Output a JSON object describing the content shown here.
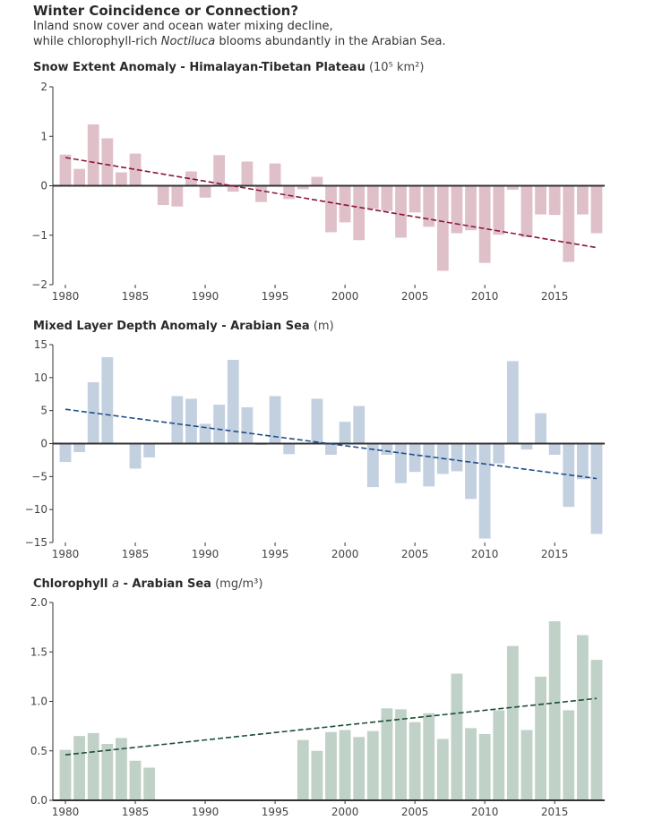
{
  "header": {
    "title": "Winter Coincidence or Connection?",
    "subtitle_line1": "Inland snow cover and ocean water mixing decline,",
    "subtitle_line2_pre": "while chlorophyll-rich ",
    "subtitle_line2_italic": "Noctiluca",
    "subtitle_line2_post": " blooms abundantly in the Arabian Sea."
  },
  "chart_data": [
    {
      "type": "bar",
      "title": "Snow Extent Anomaly - Himalayan-Tibetan Plateau",
      "unit_label": "(10⁵ km²)",
      "xlabel": "",
      "ylabel": "",
      "ylim": [
        -2,
        2
      ],
      "yticks": [
        2,
        1,
        0,
        -1,
        -2
      ],
      "ytick_labels": [
        "2",
        "1",
        "0",
        "−1",
        "−2"
      ],
      "xticks": [
        1980,
        1985,
        1990,
        1995,
        2000,
        2005,
        2010,
        2015
      ],
      "bar_color": "#dfc0c9",
      "trend_color": "#8a1538",
      "trend": {
        "x": [
          1980,
          2018
        ],
        "y": [
          0.57,
          -1.25
        ]
      },
      "x": [
        1980,
        1981,
        1982,
        1983,
        1984,
        1985,
        1986,
        1987,
        1988,
        1989,
        1990,
        1991,
        1992,
        1993,
        1994,
        1995,
        1996,
        1997,
        1998,
        1999,
        2000,
        2001,
        2002,
        2003,
        2004,
        2005,
        2006,
        2007,
        2008,
        2009,
        2010,
        2011,
        2012,
        2013,
        2014,
        2015,
        2016,
        2017,
        2018
      ],
      "values": [
        0.63,
        0.34,
        1.24,
        0.96,
        0.27,
        0.65,
        null,
        -0.39,
        -0.42,
        0.29,
        -0.24,
        0.62,
        -0.12,
        0.49,
        -0.33,
        0.45,
        -0.27,
        -0.07,
        0.18,
        -0.94,
        -0.74,
        -1.1,
        -0.47,
        -0.51,
        -1.05,
        -0.54,
        -0.83,
        -1.72,
        -0.96,
        -0.9,
        -1.56,
        -0.99,
        -0.08,
        -1.04,
        -0.58,
        -0.59,
        -1.54,
        -0.58,
        -0.96
      ]
    },
    {
      "type": "bar",
      "title": "Mixed Layer Depth Anomaly - Arabian Sea",
      "unit_label": "(m)",
      "xlabel": "",
      "ylabel": "",
      "ylim": [
        -15,
        15
      ],
      "yticks": [
        15,
        10,
        5,
        0,
        -5,
        -10,
        -15
      ],
      "ytick_labels": [
        "15",
        "10",
        "5",
        "0",
        "−5",
        "−10",
        "−15"
      ],
      "xticks": [
        1980,
        1985,
        1990,
        1995,
        2000,
        2005,
        2010,
        2015
      ],
      "bar_color": "#c3d0df",
      "trend_color": "#1f4e8c",
      "trend": {
        "x": [
          1980,
          2018
        ],
        "y": [
          5.2,
          -5.3
        ]
      },
      "x": [
        1980,
        1981,
        1982,
        1983,
        1984,
        1985,
        1986,
        1987,
        1988,
        1989,
        1990,
        1991,
        1992,
        1993,
        1994,
        1995,
        1996,
        1997,
        1998,
        1999,
        2000,
        2001,
        2002,
        2003,
        2004,
        2005,
        2006,
        2007,
        2008,
        2009,
        2010,
        2011,
        2012,
        2013,
        2014,
        2015,
        2016,
        2017,
        2018
      ],
      "values": [
        -2.8,
        -1.3,
        9.3,
        13.1,
        null,
        -3.8,
        -2.1,
        null,
        7.2,
        6.8,
        3.0,
        5.9,
        12.7,
        5.5,
        -0.2,
        7.2,
        -1.6,
        null,
        6.8,
        -1.7,
        3.3,
        5.7,
        -6.6,
        -1.7,
        -6.0,
        -4.3,
        -6.5,
        -4.6,
        -4.2,
        -8.4,
        -14.4,
        -3.0,
        12.5,
        -0.9,
        4.6,
        -1.7,
        -9.6,
        -5.4,
        -13.7
      ]
    },
    {
      "type": "bar",
      "title_pre": "Chlorophyll ",
      "title_italic": "a",
      "title_post": " - Arabian Sea",
      "unit_label": "(mg/m³)",
      "xlabel": "",
      "ylabel": "",
      "ylim": [
        0,
        2
      ],
      "yticks": [
        2.0,
        1.5,
        1.0,
        0.5,
        0.0
      ],
      "ytick_labels": [
        "2.0",
        "1.5",
        "1.0",
        "0.5",
        "0.0"
      ],
      "xticks": [
        1980,
        1985,
        1990,
        1995,
        2000,
        2005,
        2010,
        2015
      ],
      "bar_color": "#c0d1c8",
      "trend_color": "#1c4d35",
      "trend": {
        "x": [
          1980,
          2018
        ],
        "y": [
          0.46,
          1.03
        ]
      },
      "x": [
        1980,
        1981,
        1982,
        1983,
        1984,
        1985,
        1986,
        1987,
        1988,
        1989,
        1990,
        1991,
        1992,
        1993,
        1994,
        1995,
        1996,
        1997,
        1998,
        1999,
        2000,
        2001,
        2002,
        2003,
        2004,
        2005,
        2006,
        2007,
        2008,
        2009,
        2010,
        2011,
        2012,
        2013,
        2014,
        2015,
        2016,
        2017,
        2018
      ],
      "values": [
        0.51,
        0.65,
        0.68,
        0.57,
        0.63,
        0.4,
        0.33,
        null,
        null,
        null,
        null,
        null,
        null,
        null,
        null,
        null,
        null,
        0.61,
        0.5,
        0.69,
        0.71,
        0.64,
        0.7,
        0.93,
        0.92,
        0.79,
        0.88,
        0.62,
        1.28,
        0.73,
        0.67,
        0.91,
        1.56,
        0.71,
        1.25,
        1.81,
        0.91,
        1.67,
        1.42
      ]
    }
  ]
}
